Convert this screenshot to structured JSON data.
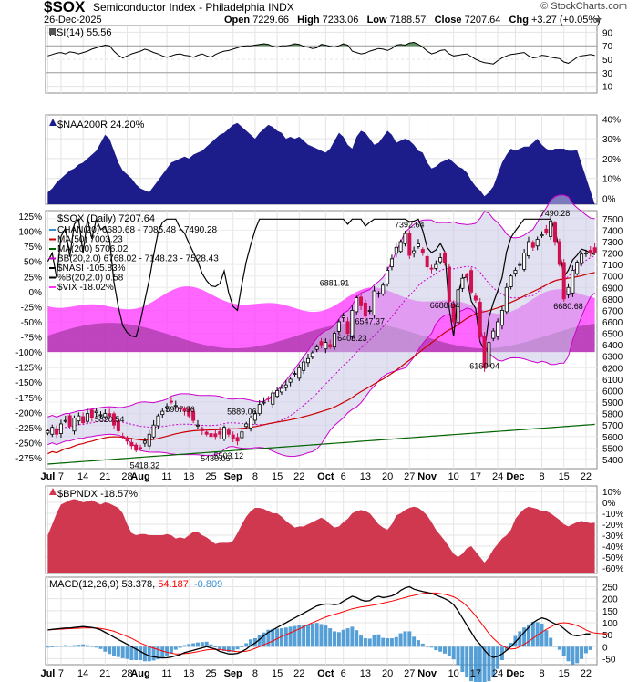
{
  "header": {
    "symbol": "$SOX",
    "name": "Semiconductor Index - Philadelphia",
    "exchange": "INDX",
    "date": "26-Dec-2025",
    "open_label": "Open",
    "open": "7229.66",
    "high_label": "High",
    "high": "7233.06",
    "low_label": "Low",
    "low": "7188.57",
    "close_label": "Close",
    "close": "7207.64",
    "chg_label": "Chg",
    "chg": "+3.27 (+0.05%)",
    "copyright": "© StockCharts.com"
  },
  "colors": {
    "up": "#000000",
    "down": "#d01050",
    "ma50": "#cc0000",
    "ma200": "#006400",
    "bb": "#cc00cc",
    "vix": "#ff33ff",
    "naa": "#1c1c8a",
    "bpndx": "#d03850",
    "macd": "#000000",
    "signal": "#ff0000",
    "hist": "#3a8fd0"
  },
  "x_labels": [
    "Jul",
    "7",
    "14",
    "21",
    "28",
    "Aug",
    "11",
    "18",
    "25",
    "Sep",
    "8",
    "15",
    "22",
    "Oct",
    "6",
    "13",
    "20",
    "27",
    "Nov",
    "10",
    "17",
    "24",
    "Dec",
    "8",
    "15",
    "22"
  ],
  "x_label_idx": [
    0,
    3,
    8,
    13,
    18,
    21,
    27,
    32,
    37,
    42,
    47,
    52,
    57,
    63,
    67,
    72,
    77,
    82,
    86,
    92,
    97,
    102,
    106,
    112,
    117,
    122
  ],
  "chart_data": [
    {
      "type": "line",
      "name": "rsi",
      "title": "RSI(14) 55.56",
      "y_ticks": [
        90,
        70,
        50,
        30,
        10
      ],
      "ylim": [
        0,
        100
      ],
      "last": 55.56,
      "values": [
        55,
        57,
        59,
        60,
        58,
        61,
        60,
        58,
        60,
        62,
        65,
        67,
        69,
        71,
        70,
        62,
        56,
        52,
        55,
        58,
        60,
        62,
        65,
        63,
        60,
        58,
        55,
        53,
        55,
        57,
        58,
        56,
        55,
        53,
        56,
        58,
        55,
        53,
        57,
        60,
        62,
        63,
        65,
        67,
        69,
        70,
        70,
        71,
        72,
        73,
        72,
        69,
        68,
        70,
        70,
        71,
        73,
        72,
        69,
        68,
        66,
        67,
        72,
        71,
        69,
        68,
        70,
        73,
        71,
        62,
        60,
        58,
        59,
        62,
        64,
        66,
        65,
        63,
        66,
        71,
        72,
        71,
        74,
        75,
        72,
        68,
        62,
        58,
        60,
        63,
        64,
        58,
        55,
        56,
        57,
        58,
        54,
        50,
        47,
        45,
        44,
        43,
        48,
        52,
        55,
        57,
        58,
        59,
        60,
        55,
        52,
        53,
        56,
        55,
        53,
        52,
        51,
        46,
        44,
        48,
        53,
        55,
        56,
        57,
        55.56
      ]
    },
    {
      "type": "area",
      "name": "naa200r",
      "title": "$NAA200R 24.20%",
      "y_ticks": [
        "40%",
        "30%",
        "20%",
        "10%",
        "0%"
      ],
      "ylim": [
        -3,
        42
      ],
      "last": 24.2,
      "values": [
        3,
        5,
        8,
        10,
        12,
        14,
        15,
        17,
        18,
        20,
        22,
        24,
        28,
        32,
        30,
        24,
        18,
        14,
        12,
        10,
        7,
        5,
        4,
        3,
        6,
        9,
        12,
        15,
        18,
        19,
        20,
        21,
        20,
        22,
        23,
        24,
        26,
        28,
        30,
        32,
        33,
        35,
        37,
        38,
        36,
        34,
        32,
        30,
        33,
        35,
        37,
        36,
        34,
        33,
        30,
        31,
        30,
        31,
        29,
        27,
        26,
        25,
        24,
        23,
        25,
        29,
        33,
        31,
        27,
        25,
        31,
        34,
        33,
        30,
        27,
        28,
        31,
        34,
        32,
        28,
        29,
        30,
        29,
        27,
        24,
        23,
        18,
        15,
        16,
        18,
        19,
        20,
        18,
        16,
        15,
        13,
        9,
        6,
        4,
        1,
        3,
        6,
        12,
        18,
        22,
        25,
        24,
        25,
        26,
        26,
        28,
        30,
        27,
        25,
        24,
        25,
        25,
        25,
        24,
        24,
        24.2
      ]
    },
    {
      "type": "candlestick",
      "name": "price",
      "title": "$SOX (Daily) 7207.64",
      "legend": [
        "CHAN(20) 6680.68 - 7085.48 - 7490.28",
        "MA(50) 7003.23",
        "MA(200) 5706.02",
        "BB(20,2.0) 6768.02 - 7148.23 - 7528.43",
        "$NASI -105.83%",
        "%B(20,2.0) 0.58",
        "$VIX -18.02%"
      ],
      "y_ticks": [
        7500,
        7400,
        7300,
        7200,
        7100,
        7000,
        6900,
        6800,
        6700,
        6600,
        6500,
        6400,
        6300,
        6200,
        6100,
        6000,
        5900,
        5800,
        5700,
        5600,
        5500,
        5400
      ],
      "ylim": [
        5320,
        7570
      ],
      "left_ticks": [
        "125%",
        "100%",
        "75%",
        "50%",
        "25%",
        "0%",
        "-25%",
        "-50%",
        "-75%",
        "-100%",
        "-125%",
        "-150%",
        "-175%",
        "-200%",
        "-225%",
        "-250%",
        "-275%"
      ],
      "annotations": [
        "5820.54",
        "5418.32",
        "5907.96",
        "5480.05",
        "5889.06",
        "5503.12",
        "6881.91",
        "6403.23",
        "6547.37",
        "7392.64",
        "6688.84",
        "6160.04",
        "7490.28",
        "6680.68"
      ],
      "annotation_values": [
        5820.54,
        5418.32,
        5907.96,
        5480.05,
        5889.06,
        5503.12,
        6881.91,
        6403.23,
        6547.37,
        7392.64,
        6688.84,
        6160.04,
        7490.28,
        6680.68
      ],
      "annotation_idx": [
        14,
        22,
        30,
        38,
        44,
        41,
        65,
        69,
        73,
        82,
        90,
        99,
        115,
        118
      ],
      "closes": [
        5650,
        5680,
        5620,
        5710,
        5740,
        5690,
        5760,
        5780,
        5720,
        5800,
        5760,
        5820,
        5790,
        5800,
        5780,
        5700,
        5650,
        5600,
        5560,
        5520,
        5480,
        5500,
        5560,
        5620,
        5700,
        5780,
        5820,
        5860,
        5900,
        5870,
        5840,
        5820,
        5780,
        5740,
        5700,
        5650,
        5620,
        5600,
        5600,
        5620,
        5680,
        5620,
        5580,
        5560,
        5640,
        5710,
        5760,
        5800,
        5880,
        5900,
        5930,
        5980,
        6000,
        6020,
        6050,
        6100,
        6150,
        6200,
        6250,
        6280,
        6330,
        6380,
        6400,
        6420,
        6380,
        6500,
        6600,
        6650,
        6500,
        6700,
        6810,
        6740,
        6650,
        6700,
        6870,
        6850,
        6920,
        7050,
        7150,
        7250,
        7300,
        7370,
        7180,
        7220,
        7280,
        7200,
        7080,
        7060,
        7100,
        7160,
        7120,
        6780,
        6600,
        6880,
        6980,
        7000,
        6860,
        6790,
        6470,
        6200,
        6420,
        6520,
        6600,
        6700,
        6900,
        7000,
        7050,
        7100,
        7200,
        7300,
        7250,
        7320,
        7360,
        7380,
        7480,
        7300,
        7100,
        6800,
        6900,
        7050,
        7120,
        7190,
        7200,
        7204.37,
        7207.64
      ],
      "ma50_last": 7003.23,
      "ma200_last": 5706.02
    },
    {
      "type": "area",
      "name": "bpndx",
      "title": "$BPNDX -18.57%",
      "y_ticks": [
        "10%",
        "0%",
        "-10%",
        "-20%",
        "-30%",
        "-40%",
        "-50%",
        "-60%"
      ],
      "ylim": [
        -65,
        15
      ],
      "last": -18.57,
      "values": [
        -30,
        -20,
        -10,
        -2,
        0,
        2,
        3,
        2,
        0,
        1,
        2,
        0,
        -2,
        0,
        -1,
        -3,
        -5,
        -10,
        -20,
        -28,
        -30,
        -29,
        -29,
        -30,
        -30,
        -30,
        -30,
        -29,
        -30,
        -33,
        -32,
        -33,
        -30,
        -27,
        -27,
        -30,
        -32,
        -35,
        -38,
        -37,
        -37,
        -37,
        -35,
        -28,
        -20,
        -13,
        -8,
        -5,
        -5,
        -6,
        -8,
        -10,
        -10,
        -13,
        -17,
        -20,
        -23,
        -22,
        -22,
        -20,
        -18,
        -16,
        -14,
        -16,
        -20,
        -23,
        -22,
        -18,
        -15,
        -10,
        -8,
        -7,
        -8,
        -10,
        -15,
        -20,
        -23,
        -25,
        -20,
        -12,
        -10,
        -7,
        -5,
        -4,
        -5,
        -8,
        -12,
        -18,
        -25,
        -30,
        -35,
        -41,
        -47,
        -50,
        -47,
        -42,
        -40,
        -45,
        -50,
        -55,
        -50,
        -43,
        -38,
        -33,
        -30,
        -25,
        -15,
        -10,
        -6,
        -4,
        -5,
        -6,
        -8,
        -8,
        -10,
        -13,
        -16,
        -20,
        -22,
        -20,
        -18,
        -17,
        -18,
        -19,
        -18.57
      ]
    },
    {
      "type": "line",
      "name": "macd",
      "title": "MACD(12,26,9)",
      "labels": {
        "macd": "53.378",
        "signal": "54.187",
        "hist": "-0.809"
      },
      "y_ticks": [
        250,
        200,
        150,
        100,
        50,
        0,
        -50
      ],
      "ylim": [
        -75,
        290
      ],
      "macd": [
        70,
        72,
        74,
        76,
        78,
        78,
        80,
        82,
        84,
        82,
        80,
        76,
        70,
        60,
        50,
        40,
        30,
        20,
        10,
        0,
        -10,
        -20,
        -30,
        -38,
        -42,
        -45,
        -47,
        -46,
        -43,
        -38,
        -33,
        -25,
        -20,
        -15,
        -10,
        -5,
        0,
        -5,
        -10,
        -20,
        -25,
        -30,
        -30,
        -28,
        -20,
        -10,
        5,
        15,
        30,
        45,
        60,
        70,
        80,
        90,
        100,
        110,
        120,
        130,
        140,
        150,
        160,
        170,
        175,
        178,
        178,
        175,
        178,
        190,
        200,
        210,
        205,
        195,
        190,
        192,
        205,
        210,
        205,
        208,
        212,
        220,
        235,
        245,
        250,
        240,
        235,
        230,
        226,
        222,
        215,
        208,
        200,
        190,
        175,
        150,
        120,
        90,
        60,
        30,
        10,
        -15,
        -35,
        -45,
        -40,
        -30,
        -15,
        0,
        20,
        40,
        60,
        80,
        100,
        112,
        120,
        115,
        105,
        95,
        90,
        75,
        60,
        48,
        45,
        48,
        53,
        53.378
      ],
      "signal": [
        70,
        71,
        72,
        73,
        74,
        75,
        76,
        77,
        78,
        78,
        78,
        78,
        76,
        73,
        69,
        64,
        57,
        50,
        42,
        35,
        25,
        15,
        8,
        0,
        -6,
        -12,
        -18,
        -23,
        -27,
        -30,
        -30,
        -29,
        -27,
        -24,
        -21,
        -17,
        -13,
        -11,
        -11,
        -12,
        -14,
        -16,
        -19,
        -21,
        -21,
        -19,
        -14,
        -7,
        0,
        8,
        16,
        24,
        33,
        42,
        50,
        58,
        66,
        74,
        83,
        92,
        100,
        108,
        116,
        123,
        130,
        135,
        140,
        146,
        152,
        158,
        162,
        166,
        168,
        171,
        174,
        178,
        182,
        186,
        190,
        195,
        200,
        205,
        210,
        214,
        218,
        222,
        224,
        224,
        224,
        221,
        218,
        214,
        208,
        198,
        186,
        170,
        150,
        128,
        105,
        80,
        55,
        35,
        18,
        5,
        -5,
        -10,
        -8,
        0,
        10,
        22,
        35,
        48,
        60,
        72,
        82,
        92,
        98,
        100,
        98,
        94,
        88,
        80,
        70,
        62,
        57,
        55,
        54.5,
        54.187
      ]
    }
  ]
}
